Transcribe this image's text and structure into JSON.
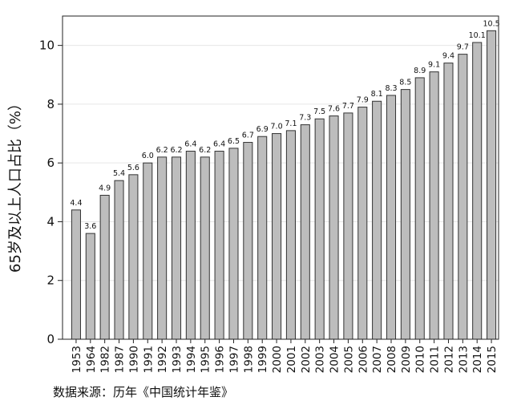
{
  "chart_data": {
    "type": "bar",
    "ylabel": "65岁及以上人口占比（%）",
    "xlabel": "",
    "title": "",
    "source_note": "数据来源：历年《中国统计年鉴》",
    "ylim": [
      0,
      11
    ],
    "yticks": [
      0,
      2,
      4,
      6,
      8,
      10
    ],
    "grid": true,
    "categories": [
      "1953",
      "1964",
      "1982",
      "1987",
      "1990",
      "1991",
      "1992",
      "1993",
      "1994",
      "1995",
      "1996",
      "1997",
      "1998",
      "1999",
      "2000",
      "2001",
      "2002",
      "2003",
      "2004",
      "2005",
      "2006",
      "2007",
      "2008",
      "2009",
      "2010",
      "2011",
      "2012",
      "2013",
      "2014",
      "2015"
    ],
    "values": [
      4.4,
      3.6,
      4.9,
      5.4,
      5.6,
      6.0,
      6.2,
      6.2,
      6.4,
      6.2,
      6.4,
      6.5,
      6.7,
      6.9,
      7.0,
      7.1,
      7.3,
      7.5,
      7.6,
      7.7,
      7.9,
      8.1,
      8.3,
      8.5,
      8.9,
      9.1,
      9.4,
      9.7,
      10.1,
      10.5
    ],
    "value_labels": [
      "4.4",
      "3.6",
      "4.9",
      "5.4",
      "5.6",
      "6.0",
      "6.2",
      "6.2",
      "6.4",
      "6.2",
      "6.4",
      "6.5",
      "6.7",
      "6.9",
      "7.0",
      "7.1",
      "7.3",
      "7.5",
      "7.6",
      "7.7",
      "7.9",
      "8.1",
      "8.3",
      "8.5",
      "8.9",
      "9.1",
      "9.4",
      "9.7",
      "10.1",
      "10.5"
    ],
    "colors": {
      "bar_fill": "#bdbdbd",
      "bar_stroke": "#333333",
      "axis": "#222222",
      "grid": "#e6e6e6"
    }
  }
}
